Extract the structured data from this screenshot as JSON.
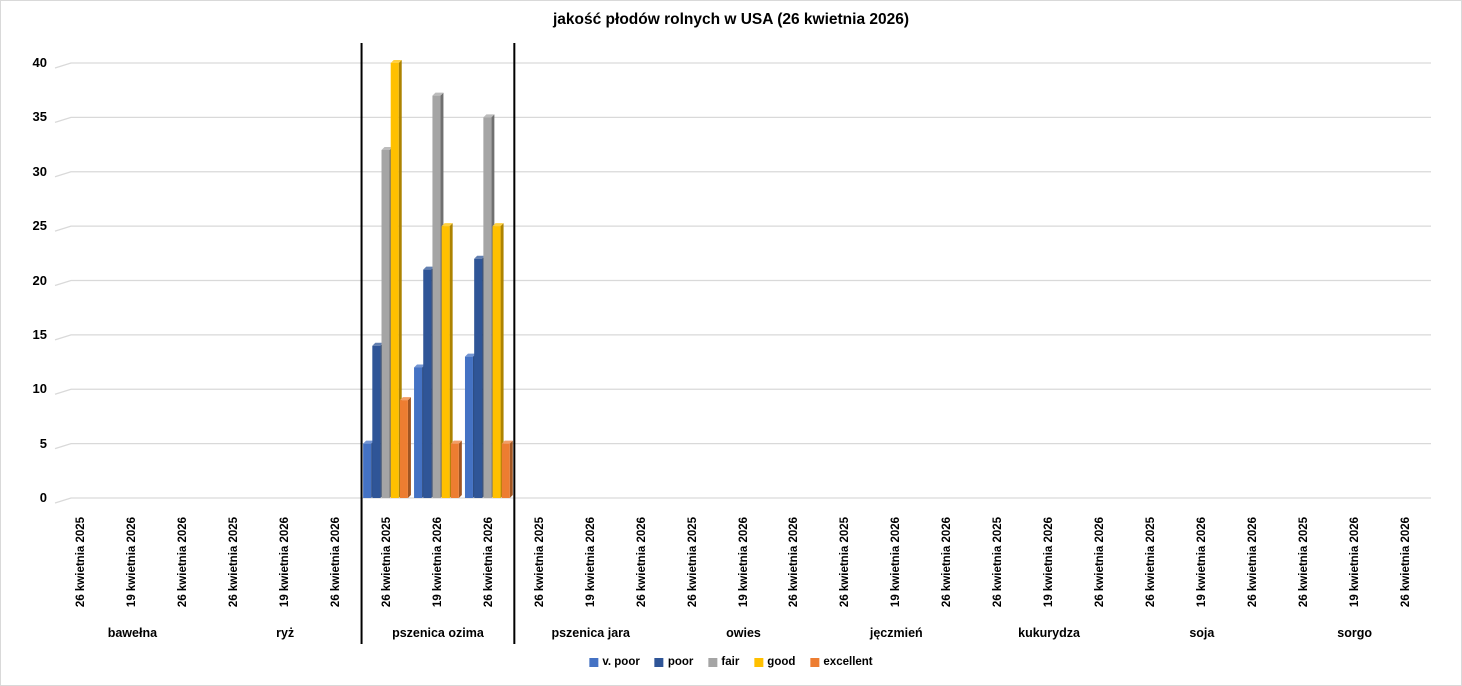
{
  "window": {
    "background": "#FFFFFF",
    "border_color": "#D9D9D9",
    "gridline_color": "#D9D9D9",
    "highlight_line_color": "#000000"
  },
  "chart_data": {
    "type": "bar",
    "title": "jakość płodów rolnych w USA (26 kwietnia 2026)",
    "xlabel": "",
    "ylabel": "",
    "ylim": [
      0,
      40
    ],
    "yticks": [
      0,
      5,
      10,
      15,
      20,
      25,
      30,
      35,
      40
    ],
    "grid": true,
    "legend_position": "bottom",
    "categories": [
      "bawełna",
      "ryż",
      "pszenica ozima",
      "pszenica jara",
      "owies",
      "jęczmień",
      "kukurydza",
      "soja",
      "sorgo"
    ],
    "subcategories": [
      "26 kwietnia 2025",
      "19 kwietnia 2026",
      "26 kwietnia 2026"
    ],
    "highlighted_category": "pszenica ozima",
    "series": [
      {
        "name": "v. poor",
        "color": "#4472C4",
        "values_by_category": {
          "pszenica ozima": [
            5,
            12,
            13
          ]
        }
      },
      {
        "name": "poor",
        "color": "#2F5597",
        "values_by_category": {
          "pszenica ozima": [
            14,
            21,
            22
          ]
        }
      },
      {
        "name": "fair",
        "color": "#A5A5A5",
        "values_by_category": {
          "pszenica ozima": [
            32,
            37,
            35
          ]
        }
      },
      {
        "name": "good",
        "color": "#FFC000",
        "values_by_category": {
          "pszenica ozima": [
            40,
            25,
            25
          ]
        }
      },
      {
        "name": "excellent",
        "color": "#ED7D31",
        "values_by_category": {
          "pszenica ozima": [
            9,
            5,
            5
          ]
        }
      }
    ]
  }
}
